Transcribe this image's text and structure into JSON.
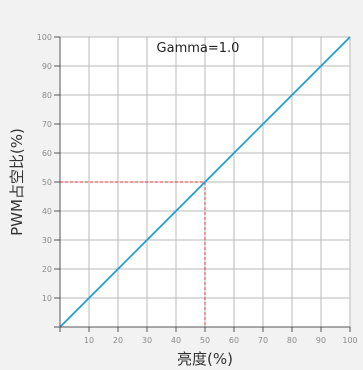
{
  "chart_data": {
    "type": "line",
    "title": "",
    "xlabel": "亮度(%)",
    "ylabel": "PWM占空比(%)",
    "xlim": [
      0,
      100
    ],
    "ylim": [
      0,
      100
    ],
    "grid": true,
    "x_ticks": [
      "",
      "10",
      "20",
      "30",
      "40",
      "50",
      "60",
      "70",
      "80",
      "90",
      "100"
    ],
    "y_ticks": [
      "",
      "10",
      "20",
      "30",
      "40",
      "50",
      "60",
      "70",
      "80",
      "90",
      "100"
    ],
    "series": [
      {
        "x": [
          0,
          10,
          20,
          30,
          40,
          50,
          60,
          70,
          80,
          90,
          100
        ],
        "y": [
          0,
          10,
          20,
          30,
          40,
          50,
          60,
          70,
          80,
          90,
          100
        ]
      }
    ],
    "annotation": "Gamma=1.0",
    "reference_point": {
      "x": 50,
      "y": 50
    },
    "colors": {
      "line": "#1a9bd7",
      "reference": "#e0303a",
      "grid": "#b9b9b9",
      "axis": "#555555",
      "background": "#f2f2f2",
      "plot_background": "#ffffff"
    }
  }
}
